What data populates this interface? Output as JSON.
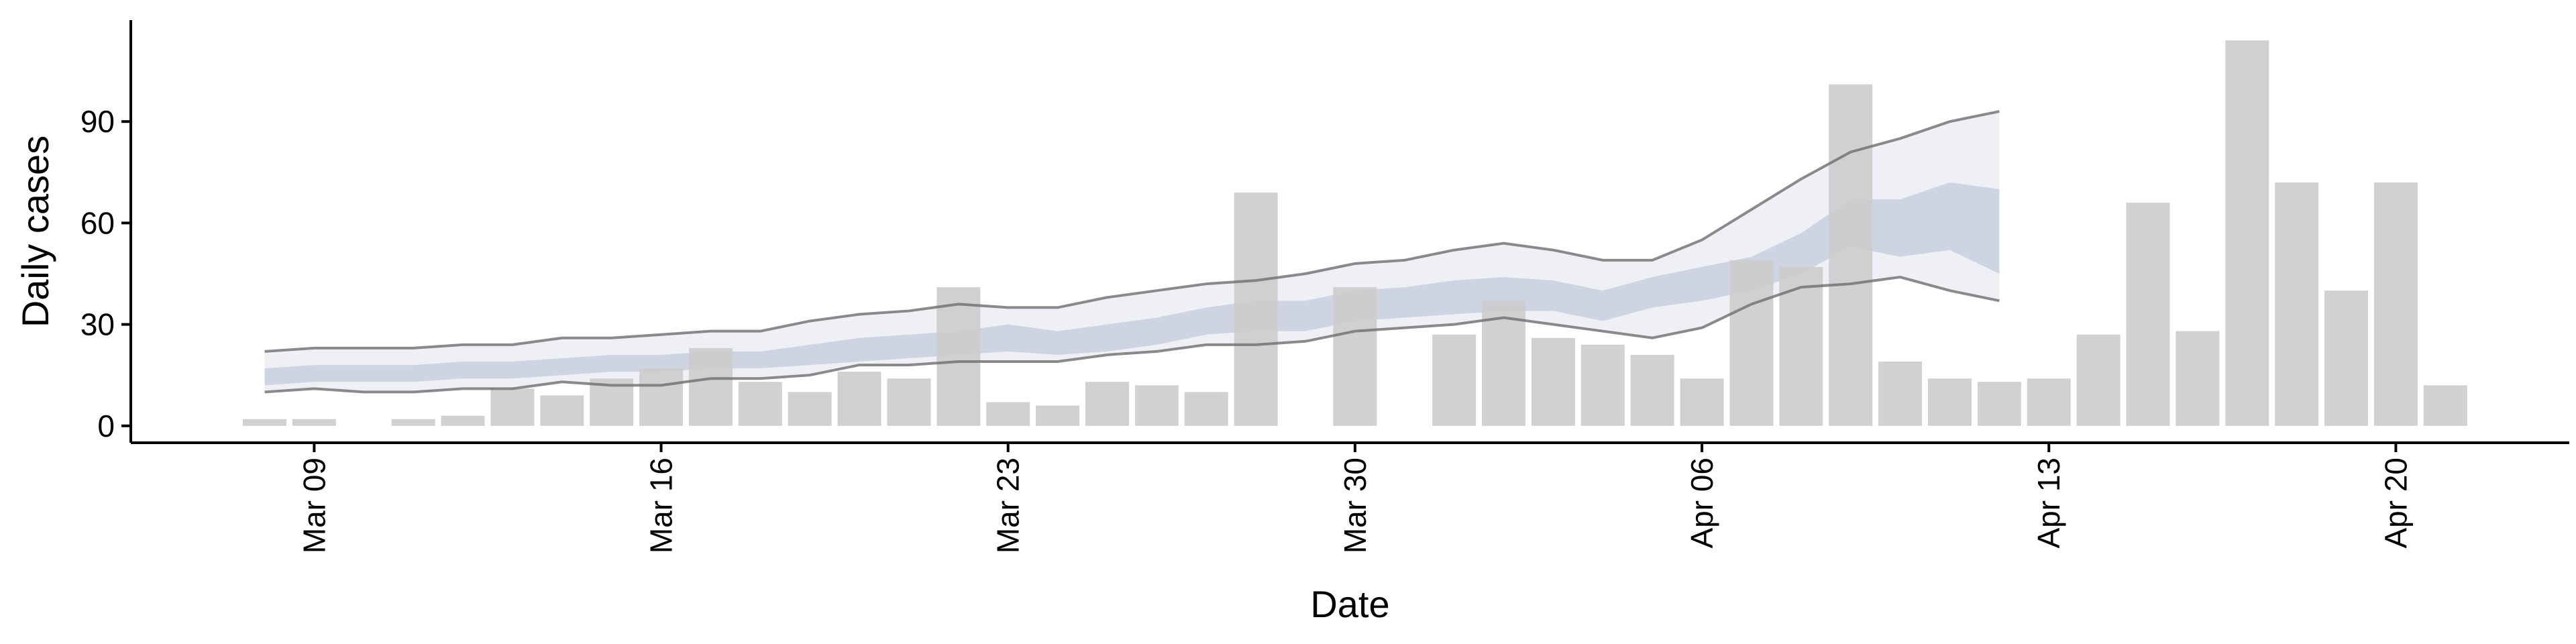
{
  "chart_data": {
    "type": "bar",
    "title": "",
    "xlabel": "Date",
    "ylabel": "Daily cases",
    "ylim": [
      -5,
      120
    ],
    "yticks": [
      0,
      30,
      60,
      90
    ],
    "xticks": [
      {
        "day": 9,
        "label": "Mar 09"
      },
      {
        "day": 16,
        "label": "Mar 16"
      },
      {
        "day": 23,
        "label": "Mar 23"
      },
      {
        "day": 30,
        "label": "Mar 30"
      },
      {
        "day": 37,
        "label": "Apr 06"
      },
      {
        "day": 44,
        "label": "Apr 13"
      },
      {
        "day": 51,
        "label": "Apr 20"
      }
    ],
    "xlim": [
      5.3,
      54.5
    ],
    "grid": false,
    "legend": "none",
    "dates": [
      "Mar 08",
      "Mar 09",
      "Mar 10",
      "Mar 11",
      "Mar 12",
      "Mar 13",
      "Mar 14",
      "Mar 15",
      "Mar 16",
      "Mar 17",
      "Mar 18",
      "Mar 19",
      "Mar 20",
      "Mar 21",
      "Mar 22",
      "Mar 23",
      "Mar 24",
      "Mar 25",
      "Mar 26",
      "Mar 27",
      "Mar 28",
      "Mar 29",
      "Mar 30",
      "Mar 31",
      "Apr 01",
      "Apr 02",
      "Apr 03",
      "Apr 04",
      "Apr 05",
      "Apr 06",
      "Apr 07",
      "Apr 08",
      "Apr 09",
      "Apr 10",
      "Apr 11",
      "Apr 12",
      "Apr 13",
      "Apr 14",
      "Apr 15",
      "Apr 16",
      "Apr 17",
      "Apr 18",
      "Apr 19",
      "Apr 20",
      "Apr 21"
    ],
    "bars": [
      2,
      2,
      0,
      2,
      3,
      11,
      9,
      14,
      17,
      23,
      13,
      10,
      16,
      14,
      41,
      7,
      6,
      13,
      12,
      10,
      69,
      0,
      41,
      0,
      27,
      37,
      26,
      24,
      21,
      14,
      49,
      47,
      101,
      19,
      14,
      13,
      14,
      27,
      66,
      28,
      114,
      72,
      40,
      72,
      12
    ],
    "band_dates": [
      "Mar 08",
      "Mar 09",
      "Mar 10",
      "Mar 11",
      "Mar 12",
      "Mar 13",
      "Mar 14",
      "Mar 15",
      "Mar 16",
      "Mar 17",
      "Mar 18",
      "Mar 19",
      "Mar 20",
      "Mar 21",
      "Mar 22",
      "Mar 23",
      "Mar 24",
      "Mar 25",
      "Mar 26",
      "Mar 27",
      "Mar 28",
      "Mar 29",
      "Mar 30",
      "Mar 31",
      "Apr 01",
      "Apr 02",
      "Apr 03",
      "Apr 04",
      "Apr 05",
      "Apr 06",
      "Apr 07",
      "Apr 08",
      "Apr 09",
      "Apr 10",
      "Apr 11",
      "Apr 12"
    ],
    "upper_line": [
      22,
      23,
      23,
      23,
      24,
      24,
      26,
      26,
      27,
      28,
      28,
      31,
      33,
      34,
      36,
      35,
      35,
      38,
      40,
      42,
      43,
      45,
      48,
      49,
      52,
      54,
      52,
      49,
      49,
      55,
      64,
      73,
      81,
      85,
      90,
      93
    ],
    "lower_line": [
      10,
      11,
      10,
      10,
      11,
      11,
      13,
      12,
      12,
      14,
      14,
      15,
      18,
      18,
      19,
      19,
      19,
      21,
      22,
      24,
      24,
      25,
      28,
      29,
      30,
      32,
      30,
      28,
      26,
      29,
      36,
      41,
      42,
      44,
      40,
      37
    ],
    "inner_upper": [
      17,
      18,
      18,
      18,
      19,
      19,
      20,
      21,
      21,
      22,
      22,
      24,
      26,
      27,
      28,
      30,
      28,
      30,
      32,
      35,
      37,
      37,
      40,
      41,
      43,
      44,
      43,
      40,
      44,
      47,
      50,
      57,
      67,
      67,
      72,
      70
    ],
    "inner_lower": [
      12,
      13,
      13,
      13,
      14,
      14,
      15,
      16,
      16,
      17,
      17,
      18,
      19,
      20,
      21,
      22,
      21,
      22,
      24,
      27,
      28,
      28,
      31,
      32,
      33,
      34,
      34,
      31,
      35,
      37,
      40,
      45,
      53,
      50,
      52,
      45
    ],
    "colors": {
      "bar": "#cccccc",
      "outer_band": "#e9ebf3",
      "inner_band": "#c7cddf",
      "line": "#6e6e6e",
      "axis": "#000000"
    }
  }
}
